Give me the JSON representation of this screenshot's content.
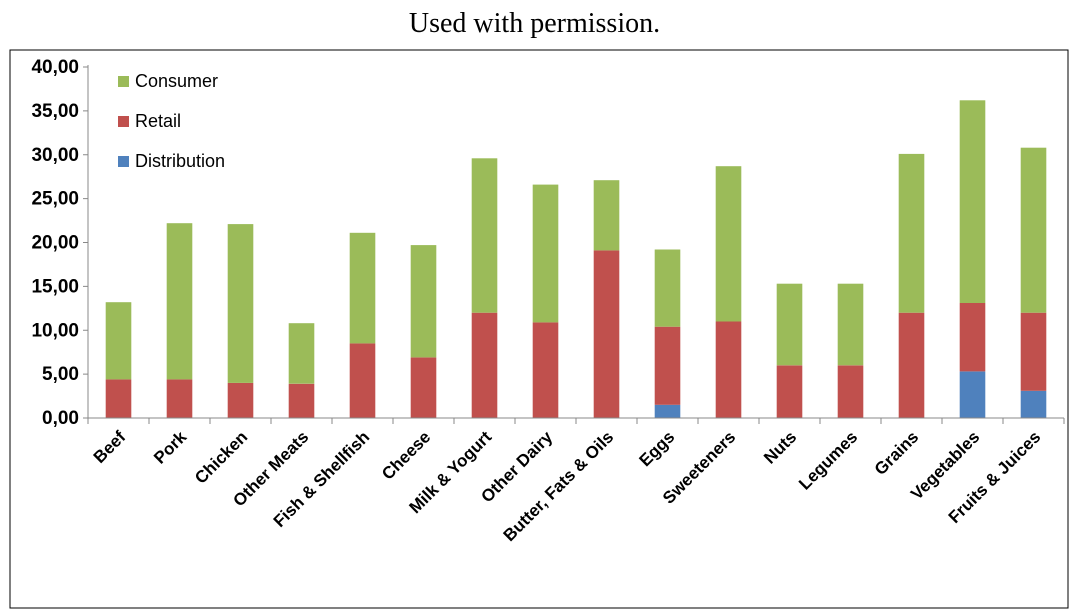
{
  "caption": "Used with permission.",
  "chart_data": {
    "type": "bar",
    "stacked": true,
    "categories": [
      "Beef",
      "Pork",
      "Chicken",
      "Other Meats",
      "Fish & Shellfish",
      "Cheese",
      "Milk & Yogurt",
      "Other Dairy",
      "Butter, Fats & Oils",
      "Eggs",
      "Sweeteners",
      "Nuts",
      "Legumes",
      "Grains",
      "Vegetables",
      "Fruits & Juices"
    ],
    "series": [
      {
        "name": "Distribution",
        "color": "#4f81bd",
        "values": [
          0,
          0,
          0,
          0,
          0,
          0,
          0,
          0,
          0,
          1.5,
          0,
          0,
          0,
          0,
          5.3,
          3.1
        ]
      },
      {
        "name": "Retail",
        "color": "#c0504d",
        "values": [
          4.4,
          4.4,
          4.0,
          3.9,
          8.5,
          6.9,
          12.0,
          10.9,
          19.1,
          8.9,
          11.0,
          6.0,
          6.0,
          12.0,
          7.8,
          8.9
        ]
      },
      {
        "name": "Consumer",
        "color": "#9bbb59",
        "values": [
          8.8,
          17.8,
          18.1,
          6.9,
          12.6,
          12.8,
          17.6,
          15.7,
          8.0,
          8.8,
          17.7,
          9.3,
          9.3,
          18.1,
          23.1,
          18.8
        ]
      }
    ],
    "ylim": [
      0,
      40
    ],
    "yticks": [
      "0,00",
      "5,00",
      "10,00",
      "15,00",
      "20,00",
      "25,00",
      "30,00",
      "35,00",
      "40,00"
    ],
    "legend": [
      "Consumer",
      "Retail",
      "Distribution"
    ],
    "legend_position": "top-left",
    "grid": false
  }
}
